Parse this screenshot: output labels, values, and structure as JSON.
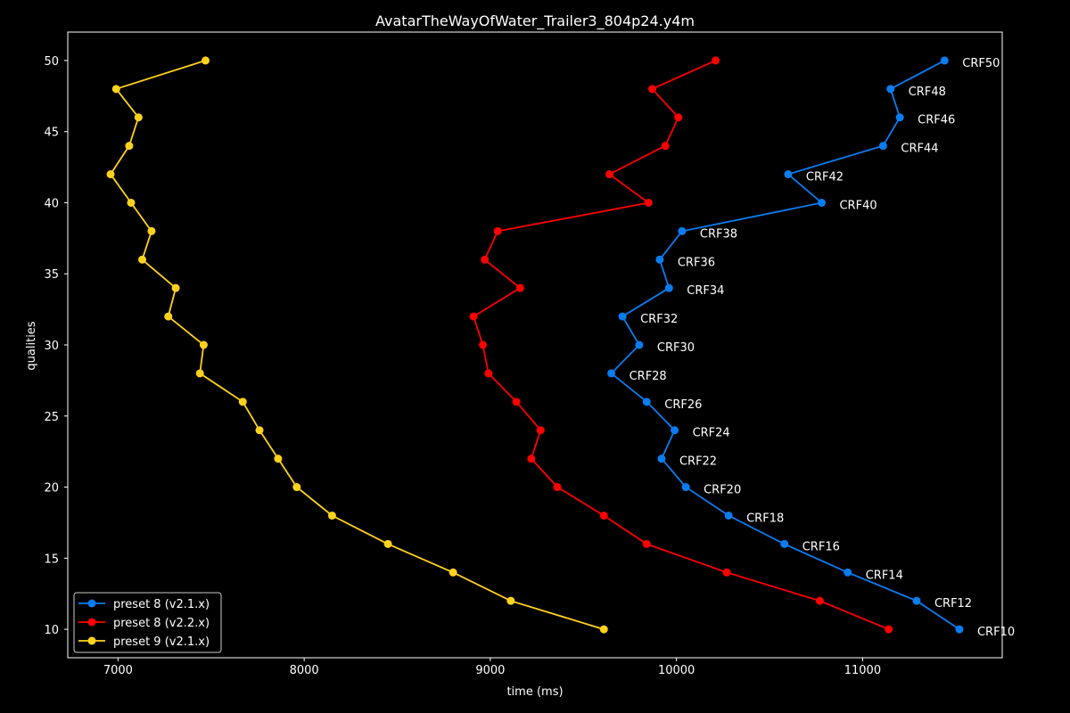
{
  "chart_data": {
    "type": "line",
    "title": "AvatarTheWayOfWater_Trailer3_804p24.y4m",
    "xlabel": "time (ms)",
    "ylabel": "qualities",
    "xlim": [
      6730,
      11750
    ],
    "ylim": [
      8,
      52
    ],
    "xticks": [
      7000,
      8000,
      9000,
      10000,
      11000
    ],
    "yticks": [
      10,
      15,
      20,
      25,
      30,
      35,
      40,
      45,
      50
    ],
    "legend_position": "bottom-left",
    "y": [
      50,
      48,
      46,
      44,
      42,
      40,
      38,
      36,
      34,
      32,
      30,
      28,
      26,
      24,
      22,
      20,
      18,
      16,
      14,
      12,
      10
    ],
    "point_labels": [
      "CRF50",
      "CRF48",
      "CRF46",
      "CRF44",
      "CRF42",
      "CRF40",
      "CRF38",
      "CRF36",
      "CRF34",
      "CRF32",
      "CRF30",
      "CRF28",
      "CRF26",
      "CRF24",
      "CRF22",
      "CRF20",
      "CRF18",
      "CRF16",
      "CRF14",
      "CRF12",
      "CRF10"
    ],
    "labeled_series": 0,
    "series": [
      {
        "name": "preset 8 (v2.1.x)",
        "color": "#0a7cf0",
        "x": [
          11440,
          11150,
          11200,
          11110,
          10600,
          10780,
          10030,
          9910,
          9960,
          9710,
          9800,
          9650,
          9840,
          9990,
          9920,
          10050,
          10280,
          10580,
          10920,
          11290,
          11520
        ]
      },
      {
        "name": "preset 8 (v2.2.x)",
        "color": "#ff0000",
        "x": [
          10210,
          9870,
          10010,
          9940,
          9640,
          9850,
          9040,
          8970,
          9160,
          8910,
          8960,
          8990,
          9140,
          9270,
          9220,
          9360,
          9610,
          9840,
          10270,
          10770,
          11140
        ]
      },
      {
        "name": "preset 9 (v2.1.x)",
        "color": "#ffd21e",
        "x": [
          7470,
          6990,
          7110,
          7060,
          6960,
          7070,
          7180,
          7130,
          7310,
          7270,
          7460,
          7440,
          7670,
          7760,
          7860,
          7960,
          8150,
          8450,
          8800,
          9110,
          9610
        ]
      }
    ]
  }
}
